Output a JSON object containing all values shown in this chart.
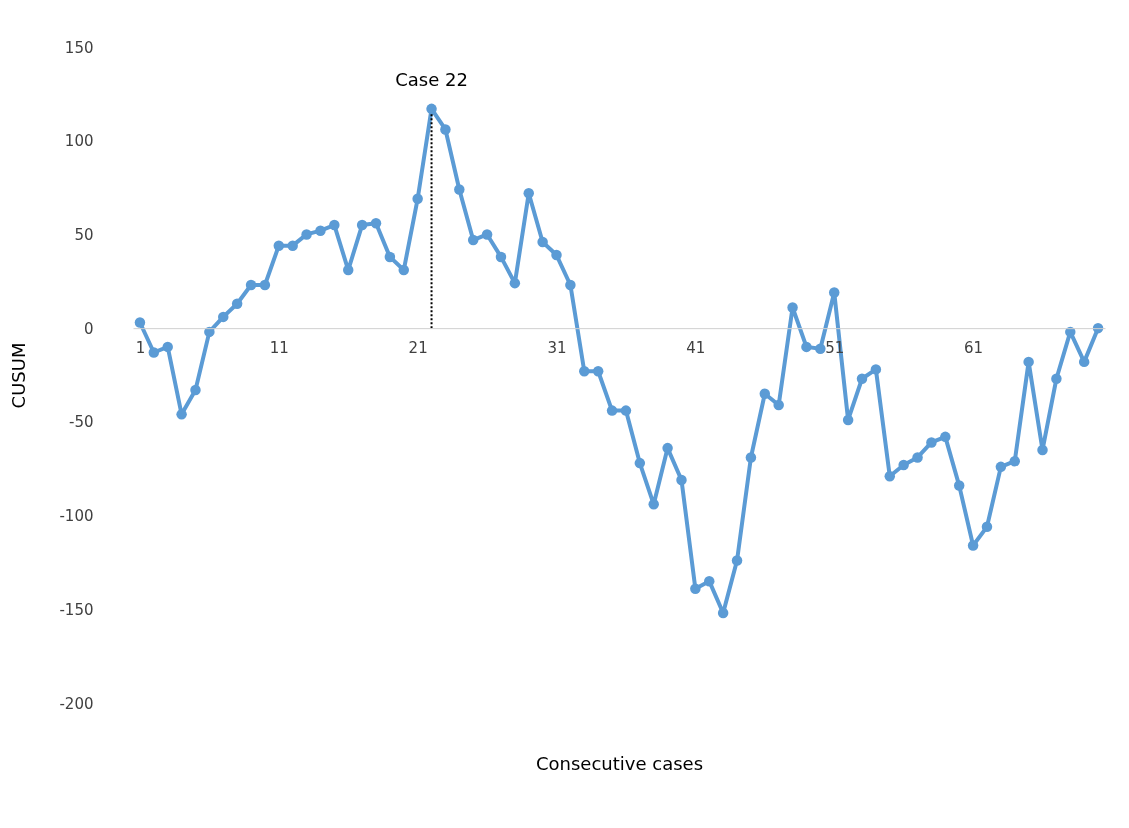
{
  "chart_data": {
    "type": "line",
    "xlabel": "Consecutive cases",
    "ylabel": "CUSUM",
    "x": [
      1,
      2,
      3,
      4,
      5,
      6,
      7,
      8,
      9,
      10,
      11,
      12,
      13,
      14,
      15,
      16,
      17,
      18,
      19,
      20,
      21,
      22,
      23,
      24,
      25,
      26,
      27,
      28,
      29,
      30,
      31,
      32,
      33,
      34,
      35,
      36,
      37,
      38,
      39,
      40,
      41,
      42,
      43,
      44,
      45,
      46,
      47,
      48,
      49,
      50,
      51,
      52,
      53,
      54,
      55,
      56,
      57,
      58,
      59,
      60,
      61,
      62,
      63,
      64,
      65,
      66,
      67,
      68,
      69,
      70
    ],
    "series": [
      {
        "color": "#5b9bd5",
        "values": [
          3,
          -13,
          -10,
          -46,
          -33,
          -2,
          6,
          13,
          23,
          23,
          44,
          44,
          50,
          52,
          55,
          31,
          55,
          56,
          38,
          31,
          69,
          117,
          106,
          74,
          47,
          50,
          38,
          24,
          72,
          46,
          39,
          23,
          -23,
          -23,
          -44,
          -44,
          -72,
          -94,
          -64,
          -81,
          -139,
          -135,
          -152,
          -124,
          -69,
          -35,
          -41,
          11,
          -10,
          -11,
          19,
          -49,
          -27,
          -22,
          -79,
          -73,
          -69,
          -61,
          -58,
          -84,
          -116,
          -106,
          -74,
          -71,
          -18,
          -65,
          -27,
          -2,
          -18,
          0
        ]
      }
    ],
    "xlim": [
      0.5,
      70.5
    ],
    "xticks": [
      1,
      11,
      21,
      31,
      41,
      51,
      61
    ],
    "ylim": [
      -200,
      150
    ],
    "yticks": [
      -200,
      -150,
      -100,
      -50,
      0,
      50,
      100,
      150
    ],
    "annotations": [
      {
        "text": "Case 22",
        "x": 22,
        "y": 117
      }
    ],
    "marker": "circle",
    "line_style": "solid",
    "grid": false
  }
}
